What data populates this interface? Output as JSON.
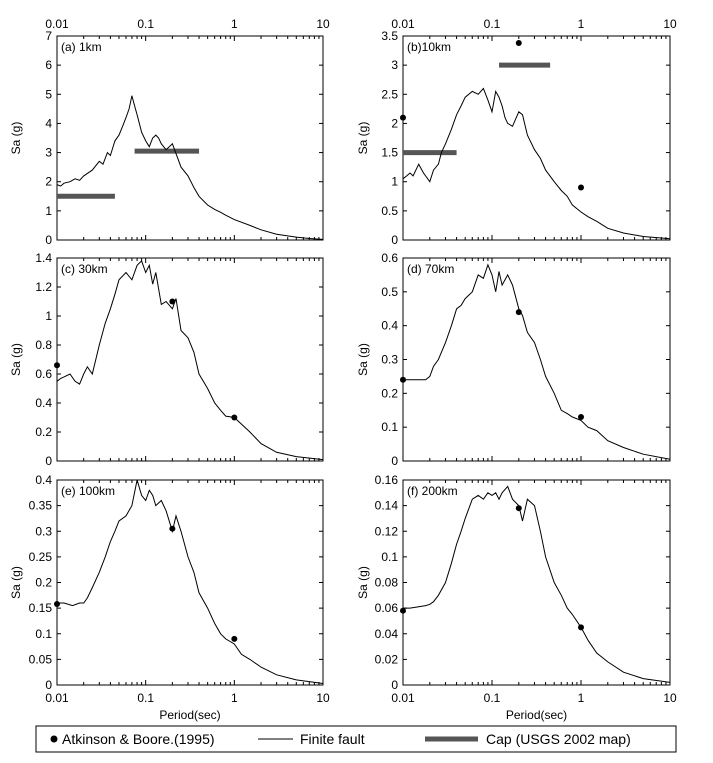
{
  "figure": {
    "x_ticks": [
      {
        "value": 0.01,
        "label": "0.01"
      },
      {
        "value": 0.1,
        "label": "0.1"
      },
      {
        "value": 1,
        "label": "1"
      },
      {
        "value": 10,
        "label": "10"
      }
    ],
    "xlabel": "Period(sec)",
    "legend": [
      {
        "kind": "marker",
        "label": "Atkinson & Boore.(1995)"
      },
      {
        "kind": "line",
        "label": "Finite fault"
      },
      {
        "kind": "bar",
        "label": "Cap (USGS 2002 map)"
      }
    ],
    "colors": {
      "line": "#000000",
      "marker": "#000000",
      "cap": "#555555"
    }
  },
  "chart_data": [
    {
      "type": "line",
      "panel": "(a) 1km",
      "ylabel": "Sa (g)",
      "xscale": "log",
      "xlim": [
        0.01,
        10
      ],
      "ylim": [
        0,
        7
      ],
      "yticks": [
        0,
        1,
        2,
        3,
        4,
        5,
        6,
        7
      ],
      "finite_fault": {
        "x": [
          0.01,
          0.011,
          0.012,
          0.014,
          0.016,
          0.018,
          0.02,
          0.025,
          0.03,
          0.033,
          0.037,
          0.04,
          0.045,
          0.05,
          0.055,
          0.06,
          0.065,
          0.07,
          0.075,
          0.08,
          0.09,
          0.1,
          0.11,
          0.12,
          0.13,
          0.14,
          0.15,
          0.17,
          0.2,
          0.25,
          0.3,
          0.35,
          0.4,
          0.5,
          0.6,
          0.7,
          0.8,
          1,
          1.5,
          2,
          3,
          5,
          7,
          10
        ],
        "y": [
          1.9,
          1.85,
          1.95,
          2.0,
          2.1,
          2.05,
          2.2,
          2.4,
          2.7,
          2.6,
          3.0,
          2.9,
          3.4,
          3.6,
          3.9,
          4.2,
          4.5,
          4.95,
          4.6,
          4.3,
          3.7,
          3.4,
          3.2,
          3.5,
          3.6,
          3.5,
          3.3,
          3.1,
          3.3,
          2.5,
          2.2,
          1.8,
          1.5,
          1.2,
          1.05,
          0.95,
          0.85,
          0.7,
          0.5,
          0.35,
          0.2,
          0.1,
          0.05,
          0.02
        ]
      },
      "atkinson_boore_1995": [],
      "cap_usgs_2002": [
        {
          "x_start": 0.01,
          "x_end": 0.045,
          "y": 1.5
        },
        {
          "x_start": 0.075,
          "x_end": 0.4,
          "y": 3.05
        }
      ]
    },
    {
      "type": "line",
      "panel": "(b)10km",
      "ylabel": "Sa (g)",
      "xscale": "log",
      "xlim": [
        0.01,
        10
      ],
      "ylim": [
        0,
        3.5
      ],
      "yticks": [
        0,
        0.5,
        1,
        1.5,
        2,
        2.5,
        3,
        3.5
      ],
      "finite_fault": {
        "x": [
          0.01,
          0.011,
          0.012,
          0.013,
          0.015,
          0.017,
          0.02,
          0.022,
          0.025,
          0.027,
          0.03,
          0.035,
          0.04,
          0.045,
          0.05,
          0.06,
          0.07,
          0.08,
          0.09,
          0.1,
          0.11,
          0.12,
          0.13,
          0.14,
          0.15,
          0.17,
          0.2,
          0.22,
          0.25,
          0.3,
          0.35,
          0.4,
          0.5,
          0.6,
          0.7,
          0.8,
          1,
          1.2,
          1.5,
          2,
          3,
          5,
          10
        ],
        "y": [
          1.05,
          1.1,
          1.15,
          1.1,
          1.3,
          1.15,
          1.0,
          1.2,
          1.3,
          1.5,
          1.65,
          1.9,
          2.15,
          2.3,
          2.45,
          2.55,
          2.5,
          2.6,
          2.4,
          2.2,
          2.55,
          2.45,
          2.3,
          2.1,
          2.0,
          1.95,
          2.2,
          2.15,
          1.8,
          1.55,
          1.4,
          1.2,
          1.0,
          0.85,
          0.75,
          0.6,
          0.48,
          0.4,
          0.32,
          0.2,
          0.12,
          0.06,
          0.02
        ]
      },
      "atkinson_boore_1995": [
        {
          "x": 0.01,
          "y": 2.1
        },
        {
          "x": 0.2,
          "y": 3.38
        },
        {
          "x": 1,
          "y": 0.9
        }
      ],
      "cap_usgs_2002": [
        {
          "x_start": 0.01,
          "x_end": 0.04,
          "y": 1.5
        },
        {
          "x_start": 0.12,
          "x_end": 0.45,
          "y": 3.0
        }
      ]
    },
    {
      "type": "line",
      "panel": "(c) 30km",
      "ylabel": "Sa (g)",
      "xscale": "log",
      "xlim": [
        0.01,
        10
      ],
      "ylim": [
        0,
        1.4
      ],
      "yticks": [
        0,
        0.2,
        0.4,
        0.6,
        0.8,
        1,
        1.2,
        1.4
      ],
      "finite_fault": {
        "x": [
          0.01,
          0.011,
          0.012,
          0.014,
          0.016,
          0.018,
          0.02,
          0.022,
          0.025,
          0.03,
          0.035,
          0.04,
          0.045,
          0.05,
          0.06,
          0.07,
          0.08,
          0.09,
          0.1,
          0.11,
          0.12,
          0.13,
          0.15,
          0.17,
          0.2,
          0.22,
          0.25,
          0.3,
          0.35,
          0.4,
          0.5,
          0.6,
          0.7,
          0.8,
          1,
          1.5,
          2,
          3,
          5,
          10
        ],
        "y": [
          0.55,
          0.57,
          0.58,
          0.6,
          0.55,
          0.53,
          0.6,
          0.65,
          0.6,
          0.8,
          0.95,
          1.05,
          1.15,
          1.25,
          1.3,
          1.25,
          1.35,
          1.38,
          1.3,
          1.35,
          1.22,
          1.3,
          1.08,
          1.1,
          1.05,
          1.12,
          0.9,
          0.85,
          0.75,
          0.6,
          0.5,
          0.4,
          0.35,
          0.31,
          0.3,
          0.2,
          0.12,
          0.06,
          0.03,
          0.01
        ]
      },
      "atkinson_boore_1995": [
        {
          "x": 0.01,
          "y": 0.66
        },
        {
          "x": 0.2,
          "y": 1.1
        },
        {
          "x": 1,
          "y": 0.3
        }
      ],
      "cap_usgs_2002": []
    },
    {
      "type": "line",
      "panel": "(d) 70km",
      "ylabel": "Sa (g)",
      "xscale": "log",
      "xlim": [
        0.01,
        10
      ],
      "ylim": [
        0,
        0.6
      ],
      "yticks": [
        0,
        0.1,
        0.2,
        0.3,
        0.4,
        0.5,
        0.6
      ],
      "finite_fault": {
        "x": [
          0.01,
          0.012,
          0.015,
          0.018,
          0.02,
          0.022,
          0.025,
          0.03,
          0.035,
          0.04,
          0.045,
          0.05,
          0.06,
          0.07,
          0.08,
          0.09,
          0.1,
          0.11,
          0.12,
          0.13,
          0.15,
          0.17,
          0.2,
          0.22,
          0.25,
          0.3,
          0.35,
          0.4,
          0.5,
          0.6,
          0.7,
          0.8,
          1,
          1.2,
          1.5,
          2,
          3,
          5,
          10
        ],
        "y": [
          0.24,
          0.24,
          0.24,
          0.24,
          0.25,
          0.28,
          0.3,
          0.35,
          0.4,
          0.45,
          0.46,
          0.48,
          0.5,
          0.55,
          0.54,
          0.58,
          0.55,
          0.5,
          0.56,
          0.52,
          0.55,
          0.52,
          0.45,
          0.43,
          0.38,
          0.35,
          0.3,
          0.25,
          0.2,
          0.15,
          0.14,
          0.13,
          0.12,
          0.1,
          0.09,
          0.06,
          0.04,
          0.02,
          0.005
        ]
      },
      "atkinson_boore_1995": [
        {
          "x": 0.01,
          "y": 0.24
        },
        {
          "x": 0.2,
          "y": 0.44
        },
        {
          "x": 1,
          "y": 0.13
        }
      ],
      "cap_usgs_2002": []
    },
    {
      "type": "line",
      "panel": "(e) 100km",
      "ylabel": "Sa (g)",
      "xscale": "log",
      "xlim": [
        0.01,
        10
      ],
      "ylim": [
        0,
        0.4
      ],
      "yticks": [
        0,
        0.05,
        0.1,
        0.15,
        0.2,
        0.25,
        0.3,
        0.35,
        0.4
      ],
      "finite_fault": {
        "x": [
          0.01,
          0.012,
          0.015,
          0.018,
          0.02,
          0.022,
          0.025,
          0.03,
          0.035,
          0.04,
          0.045,
          0.05,
          0.06,
          0.07,
          0.08,
          0.09,
          0.1,
          0.11,
          0.12,
          0.13,
          0.15,
          0.17,
          0.2,
          0.22,
          0.25,
          0.3,
          0.35,
          0.4,
          0.5,
          0.6,
          0.7,
          0.8,
          1,
          1.2,
          1.5,
          2,
          3,
          5,
          10
        ],
        "y": [
          0.16,
          0.16,
          0.155,
          0.16,
          0.16,
          0.17,
          0.19,
          0.22,
          0.25,
          0.28,
          0.3,
          0.32,
          0.33,
          0.35,
          0.4,
          0.37,
          0.36,
          0.38,
          0.37,
          0.35,
          0.36,
          0.34,
          0.3,
          0.33,
          0.3,
          0.25,
          0.22,
          0.18,
          0.15,
          0.12,
          0.1,
          0.09,
          0.08,
          0.06,
          0.05,
          0.035,
          0.02,
          0.01,
          0.003
        ]
      },
      "atkinson_boore_1995": [
        {
          "x": 0.01,
          "y": 0.158
        },
        {
          "x": 0.2,
          "y": 0.305
        },
        {
          "x": 1,
          "y": 0.09
        }
      ],
      "cap_usgs_2002": []
    },
    {
      "type": "line",
      "panel": "(f) 200km",
      "ylabel": "Sa (g)",
      "xscale": "log",
      "xlim": [
        0.01,
        10
      ],
      "ylim": [
        0,
        0.16
      ],
      "yticks": [
        0,
        0.02,
        0.04,
        0.06,
        0.08,
        0.1,
        0.12,
        0.14,
        0.16
      ],
      "finite_fault": {
        "x": [
          0.01,
          0.012,
          0.015,
          0.018,
          0.02,
          0.022,
          0.025,
          0.03,
          0.035,
          0.04,
          0.045,
          0.05,
          0.06,
          0.07,
          0.08,
          0.09,
          0.1,
          0.11,
          0.12,
          0.13,
          0.15,
          0.17,
          0.2,
          0.22,
          0.25,
          0.3,
          0.35,
          0.4,
          0.5,
          0.6,
          0.7,
          0.8,
          1,
          1.2,
          1.5,
          2,
          3,
          5,
          10
        ],
        "y": [
          0.06,
          0.06,
          0.061,
          0.062,
          0.063,
          0.065,
          0.07,
          0.08,
          0.095,
          0.11,
          0.12,
          0.13,
          0.145,
          0.148,
          0.145,
          0.15,
          0.148,
          0.15,
          0.145,
          0.15,
          0.155,
          0.145,
          0.14,
          0.128,
          0.145,
          0.14,
          0.12,
          0.1,
          0.08,
          0.07,
          0.06,
          0.055,
          0.045,
          0.035,
          0.025,
          0.018,
          0.01,
          0.005,
          0.002
        ]
      },
      "atkinson_boore_1995": [
        {
          "x": 0.01,
          "y": 0.058
        },
        {
          "x": 0.2,
          "y": 0.138
        },
        {
          "x": 1,
          "y": 0.045
        }
      ],
      "cap_usgs_2002": []
    }
  ]
}
